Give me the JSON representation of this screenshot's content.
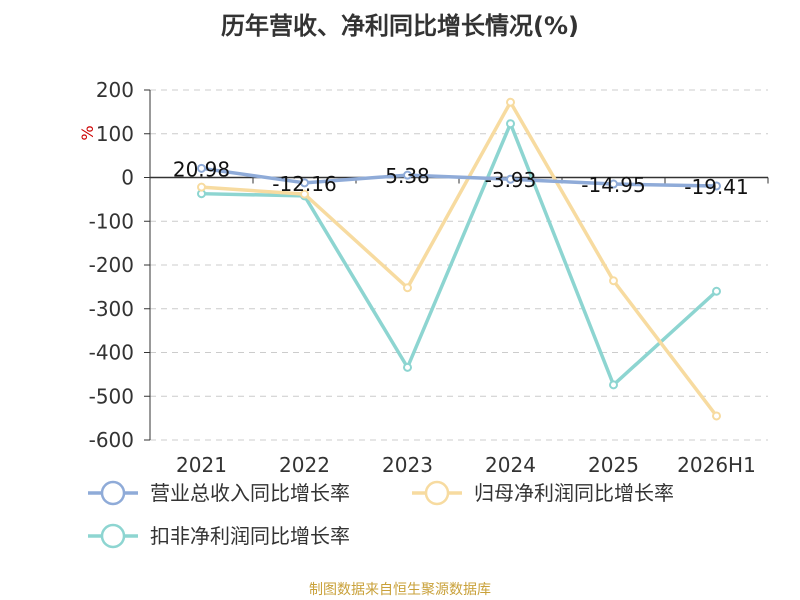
{
  "chart_data": {
    "type": "line",
    "title": "历年营收、净利同比增长情况(%)",
    "ylabel": "%",
    "categories": [
      "2021",
      "2022",
      "2023",
      "2024",
      "2025",
      "2026H1"
    ],
    "ylim": [
      -600,
      200
    ],
    "yticks": [
      200,
      100,
      0,
      -100,
      -200,
      -300,
      -400,
      -500,
      -600
    ],
    "grid": true,
    "legend_position": "bottom",
    "series": [
      {
        "name": "营业总收入同比增长率",
        "color": "#8fabd8",
        "values": [
          20.98,
          -12.16,
          5.38,
          -3.93,
          -14.95,
          -19.41
        ],
        "show_labels": true
      },
      {
        "name": "归母净利润同比增长率",
        "color": "#f7dba0",
        "values": [
          -22,
          -38,
          -252,
          172,
          -236,
          -545
        ],
        "show_labels": false
      },
      {
        "name": "扣非净利润同比增长率",
        "color": "#8dd5d1",
        "values": [
          -37,
          -42,
          -434,
          123,
          -474,
          -260
        ],
        "show_labels": false
      }
    ]
  },
  "source": "制图数据来自恒生聚源数据库",
  "colors": {
    "unit": "#cc0000",
    "source": "#c9a13a",
    "axis": "#333333",
    "grid": "#cccccc"
  }
}
